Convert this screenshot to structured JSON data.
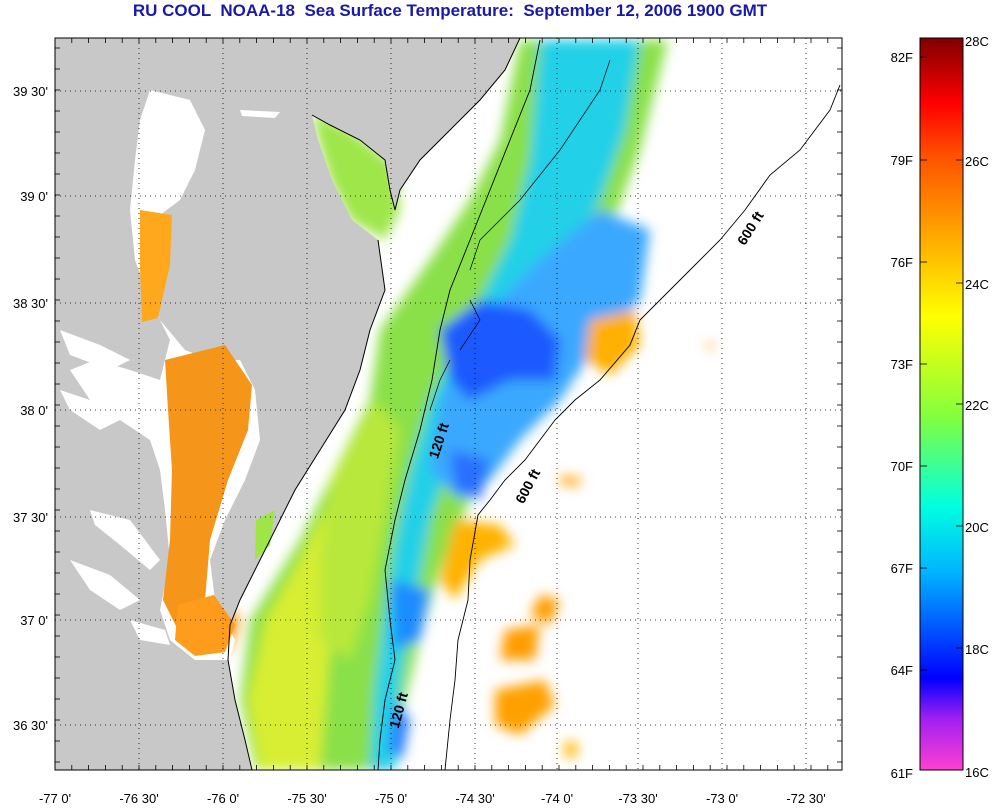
{
  "title": "RU COOL  NOAA-18  Sea Surface Temperature:  September 12, 2006 1900 GMT",
  "axes": {
    "lon_labels": [
      "-77 0'",
      "-76 30'",
      "-76 0'",
      "-75 30'",
      "-75 0'",
      "-74 30'",
      "-74 0'",
      "-73 30'",
      "-73 0'",
      "-72 30'"
    ],
    "lat_labels": [
      "39 30'",
      "39 0'",
      "38 30'",
      "38 0'",
      "37 30'",
      "37 0'",
      "36 30'"
    ],
    "lon_range": [
      -77.0,
      -72.25
    ],
    "lat_range": [
      36.2,
      39.75
    ],
    "grid": "dotted"
  },
  "contours": {
    "shallow_label": "120 ft",
    "deep_label": "600 ft"
  },
  "colorbar": {
    "fahrenheit_labels": [
      "82F",
      "79F",
      "76F",
      "73F",
      "70F",
      "67F",
      "64F",
      "61F"
    ],
    "celsius_labels": [
      "28C",
      "26C",
      "24C",
      "22C",
      "20C",
      "18C",
      "16C"
    ],
    "range_c": [
      16,
      28
    ]
  },
  "colors": {
    "land": "#c8c8c8",
    "title": "#1a1aa8"
  }
}
